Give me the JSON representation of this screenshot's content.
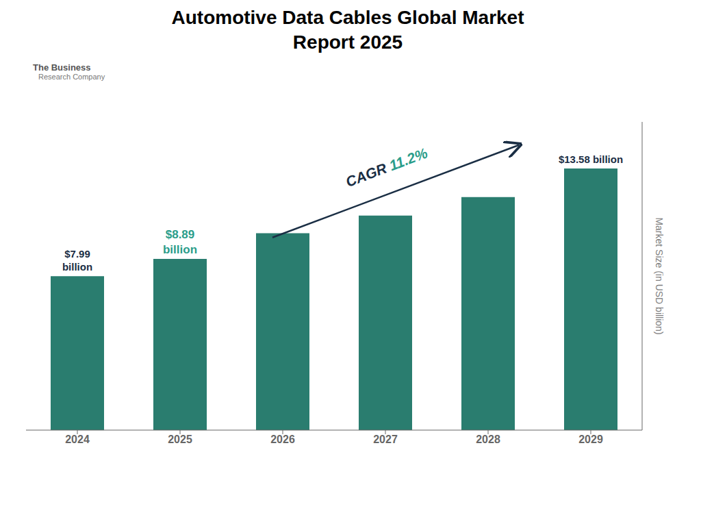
{
  "chart_data": {
    "type": "bar",
    "title": "Automotive Data Cables Global Market\nReport 2025",
    "categories": [
      "2024",
      "2025",
      "2026",
      "2027",
      "2028",
      "2029"
    ],
    "values": [
      7.99,
      8.89,
      10.22,
      11.14,
      12.1,
      13.58
    ],
    "color": "#2a7d6f",
    "ylim": [
      0,
      16
    ],
    "yticks": [],
    "ylabel": "Market Size (in USD billion)",
    "grid": false,
    "tick_labels": "x",
    "annotations": [
      {
        "text": "$7.99\nbillion",
        "category": "2024",
        "color": "#1a2e44"
      },
      {
        "text": "$8.89\nbillion",
        "category": "2025",
        "color": "#2a9d8a"
      },
      {
        "text": "$13.58 billion",
        "category": "2029",
        "color": "#1a2e44"
      },
      {
        "text": [
          "CAGR ",
          "11.2%"
        ],
        "colors": [
          "#1a2e44",
          "#2a9d8a"
        ]
      },
      {
        "text": [
          "The Business",
          "Research Company"
        ],
        "colors": [
          "#555555",
          "#777777"
        ]
      }
    ]
  }
}
